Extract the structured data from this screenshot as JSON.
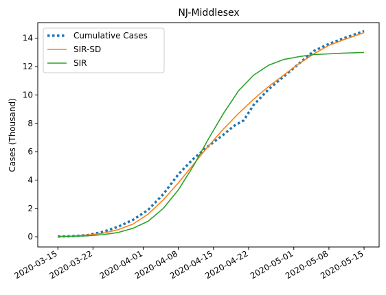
{
  "chart_data": {
    "type": "line",
    "title": "NJ-Middlesex",
    "xlabel": "",
    "ylabel": "Cases (Thousand)",
    "x_start": "2020-03-15",
    "x_end": "2020-05-15",
    "xlim": [
      "2020-03-11",
      "2020-05-18"
    ],
    "ylim": [
      -0.72,
      15.1
    ],
    "grid": false,
    "legend_position": "top-left",
    "x_ticks": [
      "2020-03-15",
      "2020-03-22",
      "2020-04-01",
      "2020-04-08",
      "2020-04-15",
      "2020-04-22",
      "2020-05-01",
      "2020-05-08",
      "2020-05-15"
    ],
    "y_ticks": [
      0,
      2,
      4,
      6,
      8,
      10,
      12,
      14
    ],
    "series": [
      {
        "name": "Cumulative Cases",
        "color": "#1f77b4",
        "style": "dotted",
        "x": [
          "2020-03-15",
          "2020-03-18",
          "2020-03-21",
          "2020-03-24",
          "2020-03-27",
          "2020-03-30",
          "2020-04-02",
          "2020-04-05",
          "2020-04-08",
          "2020-04-11",
          "2020-04-14",
          "2020-04-17",
          "2020-04-19",
          "2020-04-21",
          "2020-04-23",
          "2020-04-26",
          "2020-04-29",
          "2020-05-02",
          "2020-05-05",
          "2020-05-08",
          "2020-05-11",
          "2020-05-15"
        ],
        "values": [
          0.02,
          0.05,
          0.12,
          0.35,
          0.7,
          1.2,
          1.9,
          3.0,
          4.4,
          5.5,
          6.4,
          7.2,
          7.8,
          8.2,
          9.3,
          10.4,
          11.3,
          12.2,
          13.1,
          13.6,
          14.0,
          14.5
        ]
      },
      {
        "name": "SIR-SD",
        "color": "#ff7f0e",
        "style": "solid",
        "x": [
          "2020-03-15",
          "2020-03-18",
          "2020-03-21",
          "2020-03-24",
          "2020-03-27",
          "2020-03-30",
          "2020-04-02",
          "2020-04-05",
          "2020-04-08",
          "2020-04-11",
          "2020-04-14",
          "2020-04-17",
          "2020-04-20",
          "2020-04-23",
          "2020-04-26",
          "2020-04-29",
          "2020-05-02",
          "2020-05-05",
          "2020-05-08",
          "2020-05-11",
          "2020-05-15"
        ],
        "values": [
          0.02,
          0.05,
          0.12,
          0.25,
          0.5,
          0.9,
          1.6,
          2.6,
          3.8,
          5.1,
          6.4,
          7.6,
          8.7,
          9.7,
          10.6,
          11.4,
          12.2,
          12.9,
          13.5,
          13.9,
          14.4
        ]
      },
      {
        "name": "SIR",
        "color": "#2ca02c",
        "style": "solid",
        "x": [
          "2020-03-15",
          "2020-03-18",
          "2020-03-21",
          "2020-03-24",
          "2020-03-27",
          "2020-03-30",
          "2020-04-02",
          "2020-04-05",
          "2020-04-08",
          "2020-04-11",
          "2020-04-14",
          "2020-04-17",
          "2020-04-20",
          "2020-04-23",
          "2020-04-26",
          "2020-04-29",
          "2020-05-02",
          "2020-05-05",
          "2020-05-08",
          "2020-05-11",
          "2020-05-15"
        ],
        "values": [
          0.01,
          0.03,
          0.07,
          0.15,
          0.3,
          0.6,
          1.1,
          2.0,
          3.3,
          5.0,
          6.9,
          8.7,
          10.3,
          11.4,
          12.1,
          12.5,
          12.7,
          12.85,
          12.9,
          12.95,
          13.0
        ]
      }
    ]
  }
}
